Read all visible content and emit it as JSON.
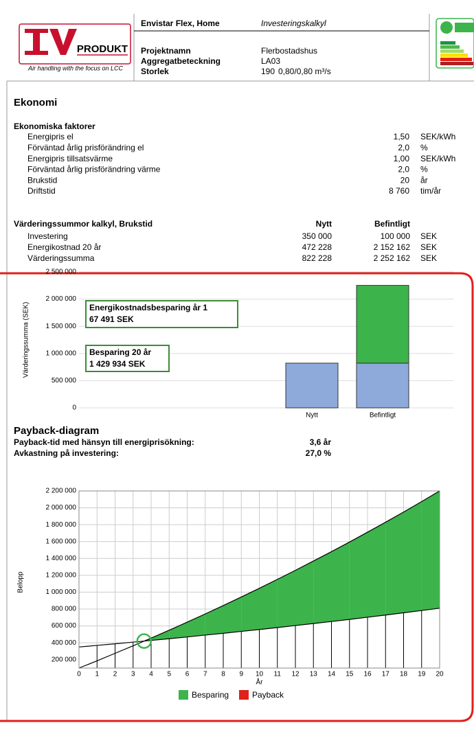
{
  "header": {
    "logo": "PRODUKT",
    "tagline": "Air handling with the focus on LCC",
    "product": "Envistar Flex, Home",
    "doc_type": "Investeringskalkyl",
    "fields": [
      [
        "Projektnamn",
        "Flerbostadshus"
      ],
      [
        "Aggregatbeteckning",
        "LA03"
      ],
      [
        "Storlek",
        "190",
        "0,80/0,80 m³/s"
      ]
    ]
  },
  "section_title": "Ekonomi",
  "factors": {
    "title": "Ekonomiska faktorer",
    "rows": [
      [
        "Energipris el",
        "1,50",
        "SEK/kWh"
      ],
      [
        "Förväntad årlig prisförändring el",
        "2,0",
        "%"
      ],
      [
        "Energipris tillsatsvärme",
        "1,00",
        "SEK/kWh"
      ],
      [
        "Förväntad årlig prisförändring värme",
        "2,0",
        "%"
      ],
      [
        "Brukstid",
        "20",
        "år"
      ],
      [
        "Driftstid",
        "8 760",
        "tim/år"
      ]
    ]
  },
  "summary": {
    "header": [
      "Värderingssummor kalkyl, Brukstid",
      "Nytt",
      "Befintligt"
    ],
    "rows": [
      [
        "Investering",
        "350 000",
        "100 000",
        "SEK"
      ],
      [
        "Energikostnad 20 år",
        "472 228",
        "2 152 162",
        "SEK"
      ],
      [
        "Värderingssumma",
        "822 228",
        "2 252 162",
        "SEK"
      ]
    ]
  },
  "payback": {
    "title": "Payback-diagram",
    "rows": [
      [
        "Payback-tid med hänsyn till energiprisökning:",
        "3,6 år"
      ],
      [
        "Avkastning på investering:",
        "27,0 %"
      ]
    ]
  },
  "chart_data": [
    {
      "type": "bar",
      "ylabel": "Värderingssumma (SEK)",
      "categories": [
        "Nytt",
        "Befintligt"
      ],
      "series": [
        {
          "color": "#8eaadb",
          "values": [
            822228,
            822228
          ]
        },
        {
          "color": "#3cb44b",
          "values": [
            null,
            1429934
          ]
        }
      ],
      "ylim": [
        0,
        2500000
      ],
      "yticks": [
        0,
        {
          "value": 500000,
          "label": "500 000"
        },
        {
          "value": 1000000,
          "label": "1 000 000"
        },
        {
          "value": 1500000,
          "label": "1 500 000"
        },
        {
          "value": 2000000,
          "label": "2 000 000"
        },
        {
          "value": 2500000,
          "label": "2 500 000"
        }
      ],
      "grid": true,
      "annotations": [
        [
          "Energikostnadsbesparing år 1",
          "67 491 SEK"
        ],
        [
          "Besparing 20 år",
          "1 429 934 SEK"
        ]
      ]
    },
    {
      "type": "line",
      "xlabel": "År",
      "ylabel": "Belopp",
      "x": [
        0,
        1,
        2,
        3,
        4,
        5,
        6,
        7,
        8,
        9,
        10,
        11,
        12,
        13,
        14,
        15,
        16,
        17,
        18,
        19,
        20
      ],
      "series": [
        {
          "color": "#000000",
          "values": [
            350000,
            369000,
            388000,
            408000,
            428000,
            448000,
            469000,
            491000,
            512000,
            535000,
            557000,
            580000,
            604000,
            628000,
            652000,
            677000,
            703000,
            729000,
            755000,
            782000,
            810000
          ]
        },
        {
          "color": "#000000",
          "values": [
            100000,
            186000,
            275000,
            364000,
            456000,
            549000,
            645000,
            742000,
            841000,
            943000,
            1046000,
            1152000,
            1259000,
            1369000,
            1480000,
            1594000,
            1711000,
            1829000,
            1950000,
            2074000,
            2200000
          ]
        }
      ],
      "xlim": [
        0,
        20
      ],
      "xticks": [
        0,
        1,
        2,
        3,
        4,
        5,
        6,
        7,
        8,
        9,
        10,
        11,
        12,
        13,
        14,
        15,
        16,
        17,
        18,
        19,
        20
      ],
      "ylim": [
        100000,
        2200000
      ],
      "yticks": [
        {
          "value": 200000,
          "label": "200 000"
        },
        {
          "value": 400000,
          "label": "400 000"
        },
        {
          "value": 600000,
          "label": "600 000"
        },
        {
          "value": 800000,
          "label": "800 000"
        },
        {
          "value": 1000000,
          "label": "1 000 000"
        },
        {
          "value": 1200000,
          "label": "1 200 000"
        },
        {
          "value": 1400000,
          "label": "1 400 000"
        },
        {
          "value": 1600000,
          "label": "1 600 000"
        },
        {
          "value": 1800000,
          "label": "1 800 000"
        },
        {
          "value": 2000000,
          "label": "2 000 000"
        },
        {
          "value": 2200000,
          "label": "2 200 000"
        }
      ],
      "grid": true,
      "legend": [
        {
          "label": "Besparing",
          "color": "#3cb44b"
        },
        {
          "label": "Payback",
          "color": "#e0201b"
        }
      ]
    }
  ]
}
